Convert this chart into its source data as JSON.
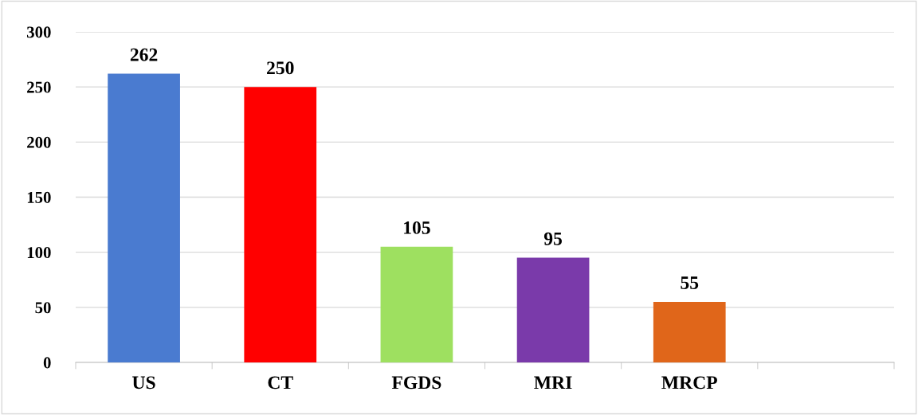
{
  "chart_data": {
    "type": "bar",
    "categories": [
      "US",
      "CT",
      "FGDS",
      "MRI",
      "MRCP",
      null
    ],
    "values": [
      262,
      250,
      105,
      95,
      55,
      null
    ],
    "colors": [
      "#4a7bd0",
      "#ff0000",
      "#9ee060",
      "#7a3aaa",
      "#e0661a",
      "#ffffff"
    ],
    "ylim": [
      0,
      300
    ],
    "yticks": [
      0,
      50,
      100,
      150,
      200,
      250,
      300
    ],
    "grid": "y",
    "data_labels": true
  }
}
